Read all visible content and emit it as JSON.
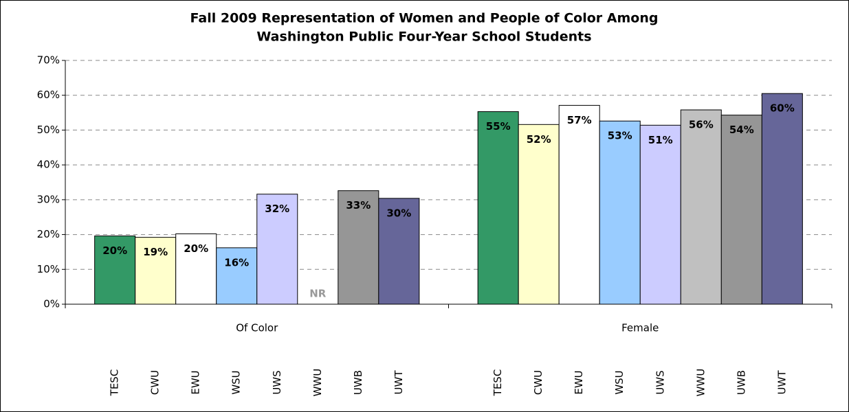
{
  "chart_data": {
    "type": "bar",
    "title": [
      "Fall 2009 Representation of Women and People of Color Among",
      "Washington Public Four-Year School Students"
    ],
    "categories": [
      "Of Color",
      "Female"
    ],
    "series": [
      {
        "name": "TESC",
        "color": "#339966",
        "values": [
          19.6,
          55.3
        ],
        "value_labels": [
          "20%",
          "55%"
        ]
      },
      {
        "name": "CWU",
        "color": "#ffffcc",
        "values": [
          19.2,
          51.6
        ],
        "value_labels": [
          "19%",
          "52%"
        ]
      },
      {
        "name": "EWU",
        "color": "#ffffff",
        "values": [
          20.2,
          57.1
        ],
        "value_labels": [
          "20%",
          "57%"
        ]
      },
      {
        "name": "WSU",
        "color": "#99ccff",
        "values": [
          16.2,
          52.6
        ],
        "value_labels": [
          "16%",
          "53%"
        ]
      },
      {
        "name": "UWS",
        "color": "#ccccff",
        "values": [
          31.6,
          51.4
        ],
        "value_labels": [
          "32%",
          "51%"
        ]
      },
      {
        "name": "WWU",
        "color": "#c0c0c0",
        "values": [
          null,
          55.8
        ],
        "value_labels": [
          "NR",
          "56%"
        ]
      },
      {
        "name": "UWB",
        "color": "#969696",
        "values": [
          32.6,
          54.3
        ],
        "value_labels": [
          "33%",
          "54%"
        ]
      },
      {
        "name": "UWT",
        "color": "#666699",
        "values": [
          30.4,
          60.5
        ],
        "value_labels": [
          "30%",
          "60%"
        ]
      }
    ],
    "ylim": [
      0,
      70
    ],
    "yticks": [
      {
        "value": 0,
        "label": "0%"
      },
      {
        "value": 10,
        "label": "10%"
      },
      {
        "value": 20,
        "label": "20%"
      },
      {
        "value": 30,
        "label": "30%"
      },
      {
        "value": 40,
        "label": "40%"
      },
      {
        "value": 50,
        "label": "50%"
      },
      {
        "value": 60,
        "label": "60%"
      },
      {
        "value": 70,
        "label": "70%"
      }
    ],
    "grid": true
  }
}
